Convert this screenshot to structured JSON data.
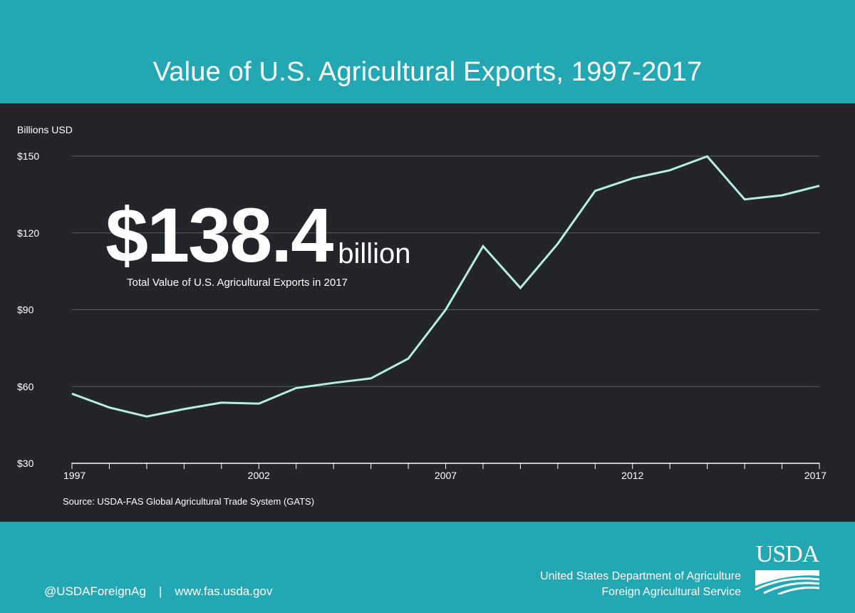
{
  "header": {
    "title": "Value of U.S. Agricultural Exports, 1997-2017"
  },
  "highlight": {
    "value": "$138.4",
    "unit": "billion",
    "caption": "Total Value of U.S. Agricultural Exports in 2017"
  },
  "source": "Source: USDA-FAS Global Agricultural Trade System (GATS)",
  "footer": {
    "twitter": "@USDAForeignAg",
    "separator": "|",
    "website": "www.fas.usda.gov",
    "agency_line1": "United States Department of Agriculture",
    "agency_line2": "Foreign Agricultural Service",
    "logo_text": "USDA"
  },
  "colors": {
    "teal": "#23a7b3",
    "panel": "#232528",
    "line": "#b6eee6",
    "grid": "#5b5f63",
    "text": "#ffffff"
  },
  "chart_data": {
    "type": "line",
    "ylabel": "Billions USD",
    "x": [
      1997,
      1998,
      1999,
      2000,
      2001,
      2002,
      2003,
      2004,
      2005,
      2006,
      2007,
      2008,
      2009,
      2010,
      2011,
      2012,
      2013,
      2014,
      2015,
      2016,
      2017
    ],
    "series": [
      {
        "values": [
          57.2,
          51.8,
          48.3,
          51.2,
          53.7,
          53.3,
          59.4,
          61.4,
          63.2,
          70.9,
          90.0,
          114.8,
          98.5,
          115.8,
          136.4,
          141.3,
          144.5,
          149.9,
          133.1,
          134.7,
          138.4
        ]
      }
    ],
    "ylim": [
      30,
      150
    ],
    "yticks": [
      30,
      60,
      90,
      120,
      150
    ],
    "ytick_labels": [
      "$30",
      "$60",
      "$90",
      "$120",
      "$150"
    ],
    "xticks_labeled": [
      1997,
      2002,
      2007,
      2012,
      2017
    ],
    "xtick_labels": [
      "1997",
      "2002",
      "2007",
      "2012",
      "2017"
    ],
    "grid": "horizontal"
  }
}
